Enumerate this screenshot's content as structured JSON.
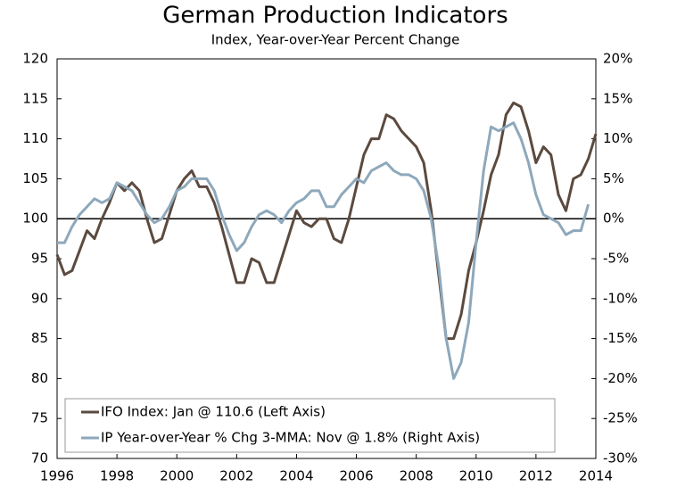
{
  "chart_data": {
    "type": "line",
    "title": "German Production Indicators",
    "subtitle": "Index, Year-over-Year Percent Change",
    "x": [
      1996,
      1996.25,
      1996.5,
      1996.75,
      1997,
      1997.25,
      1997.5,
      1997.75,
      1998,
      1998.25,
      1998.5,
      1998.75,
      1999,
      1999.25,
      1999.5,
      1999.75,
      2000,
      2000.25,
      2000.5,
      2000.75,
      2001,
      2001.25,
      2001.5,
      2001.75,
      2002,
      2002.25,
      2002.5,
      2002.75,
      2003,
      2003.25,
      2003.5,
      2003.75,
      2004,
      2004.25,
      2004.5,
      2004.75,
      2005,
      2005.25,
      2005.5,
      2005.75,
      2006,
      2006.25,
      2006.5,
      2006.75,
      2007,
      2007.25,
      2007.5,
      2007.75,
      2008,
      2008.25,
      2008.5,
      2008.75,
      2009,
      2009.25,
      2009.5,
      2009.75,
      2010,
      2010.25,
      2010.5,
      2010.75,
      2011,
      2011.25,
      2011.5,
      2011.75,
      2012,
      2012.25,
      2012.5,
      2012.75,
      2013,
      2013.25,
      2013.5,
      2013.75,
      2014
    ],
    "series": [
      {
        "name": "IFO Index: Jan @ 110.6 (Left Axis)",
        "color": "#5b4a3f",
        "axis": "y",
        "values": [
          95.5,
          93,
          93.5,
          96,
          98.5,
          97.5,
          100,
          102,
          104.5,
          103.5,
          104.5,
          103.5,
          100,
          97,
          97.5,
          100.5,
          103.5,
          105,
          106,
          104,
          104,
          102,
          99,
          95.5,
          92,
          92,
          95,
          94.5,
          92,
          92,
          95,
          98,
          101,
          99.5,
          99,
          100,
          100,
          97.5,
          97,
          100,
          104,
          108,
          110,
          110,
          113,
          112.5,
          111,
          110,
          109,
          107,
          101,
          93,
          85,
          85,
          88,
          93.5,
          97,
          101,
          105.5,
          108,
          113,
          114.5,
          114,
          111,
          107,
          109,
          108,
          103,
          101,
          105,
          105.5,
          107.5,
          110.6
        ]
      },
      {
        "name": "IP Year-over-Year % Chg 3-MMA: Nov @ 1.8% (Right Axis)",
        "color": "#8ea8bb",
        "axis": "y2",
        "values": [
          -3,
          -3,
          -1,
          0.5,
          1.5,
          2.5,
          2,
          2.5,
          4.5,
          4,
          3.5,
          2,
          0.5,
          -0.5,
          0,
          1.5,
          3.5,
          4,
          5,
          5,
          5,
          3.5,
          0.5,
          -2,
          -4,
          -3,
          -1,
          0.5,
          1,
          0.5,
          -0.5,
          1,
          2,
          2.5,
          3.5,
          3.5,
          1.5,
          1.5,
          3,
          4,
          5,
          4.5,
          6,
          6.5,
          7,
          6,
          5.5,
          5.5,
          5,
          3.5,
          0,
          -6,
          -15,
          -20,
          -18,
          -13,
          -3,
          6,
          11.5,
          11,
          11.5,
          12,
          10,
          7,
          3,
          0.5,
          0,
          -0.5,
          -2,
          -1.5,
          -1.5,
          1.8,
          null
        ]
      }
    ],
    "xlim": [
      1996,
      2014
    ],
    "xticks": [
      1996,
      1998,
      2000,
      2002,
      2004,
      2006,
      2008,
      2010,
      2012,
      2014
    ],
    "ylim": [
      70,
      120
    ],
    "yticks": [
      70,
      75,
      80,
      85,
      90,
      95,
      100,
      105,
      110,
      115,
      120
    ],
    "y2lim": [
      -30,
      20
    ],
    "y2ticks": [
      {
        "value": -30,
        "label": "-30%"
      },
      {
        "value": -25,
        "label": "-25%"
      },
      {
        "value": -20,
        "label": "-20%"
      },
      {
        "value": -15,
        "label": "-15%"
      },
      {
        "value": -10,
        "label": "-10%"
      },
      {
        "value": -5,
        "label": "-5%"
      },
      {
        "value": 0,
        "label": "0%"
      },
      {
        "value": 5,
        "label": "5%"
      },
      {
        "value": 10,
        "label": "10%"
      },
      {
        "value": 15,
        "label": "15%"
      },
      {
        "value": 20,
        "label": "20%"
      }
    ],
    "legend": "lower left"
  }
}
